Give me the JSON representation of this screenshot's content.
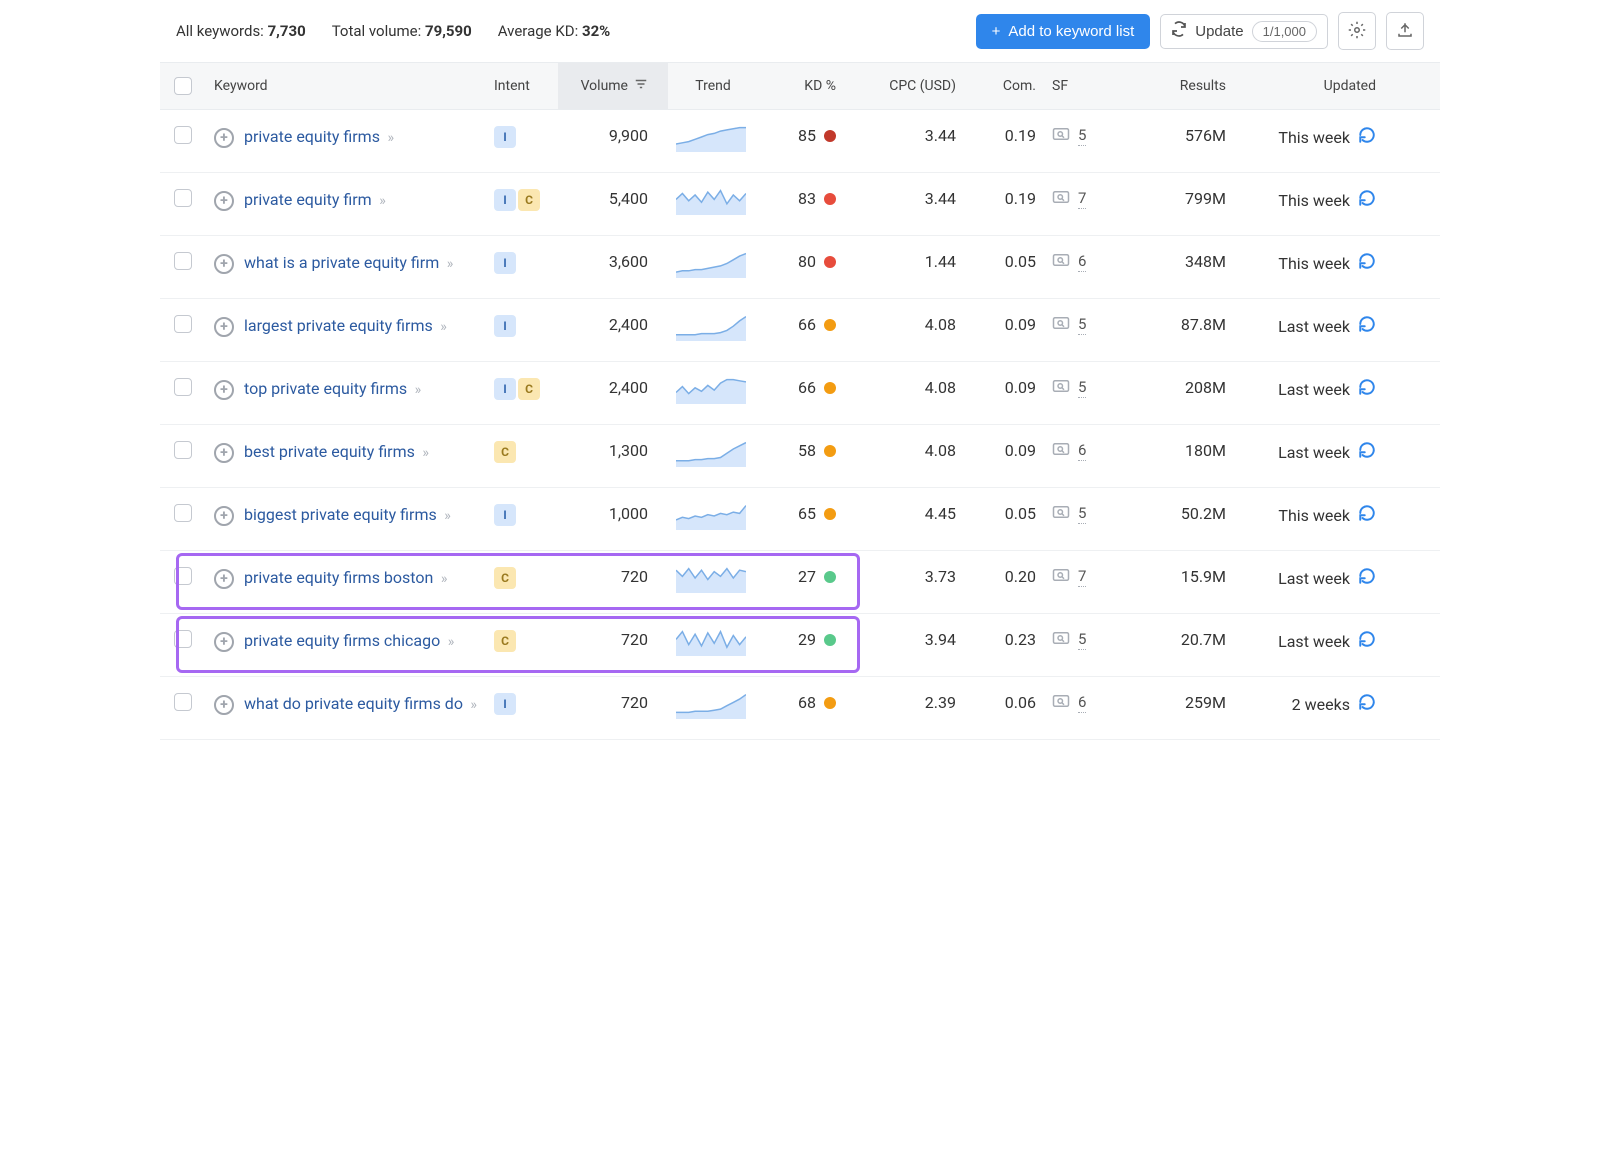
{
  "stats": {
    "all_keywords_label": "All keywords:",
    "all_keywords_value": "7,730",
    "total_volume_label": "Total volume:",
    "total_volume_value": "79,590",
    "average_kd_label": "Average KD:",
    "average_kd_value": "32%"
  },
  "actions": {
    "add_to_list": "Add to keyword list",
    "update": "Update",
    "update_count": "1/1,000"
  },
  "columns": {
    "keyword": "Keyword",
    "intent": "Intent",
    "volume": "Volume",
    "trend": "Trend",
    "kd": "KD %",
    "cpc": "CPC (USD)",
    "com": "Com.",
    "sf": "SF",
    "results": "Results",
    "updated": "Updated"
  },
  "colors": {
    "kd_red_dark": "#c1392b",
    "kd_red": "#e74c3c",
    "kd_orange": "#f39c12",
    "kd_green": "#59c98b",
    "trend_fill": "#d6e6fb",
    "trend_stroke": "#7baee6",
    "highlight_border": "#a668f2"
  },
  "rows": [
    {
      "keyword": "private equity firms",
      "intents": [
        "I"
      ],
      "volume": "9,900",
      "trend": [
        6,
        7,
        8,
        10,
        12,
        14,
        15,
        17,
        18,
        19,
        20,
        20
      ],
      "kd": "85",
      "kd_color": "#c1392b",
      "cpc": "3.44",
      "com": "0.19",
      "sf": "5",
      "results": "576M",
      "updated": "This week"
    },
    {
      "keyword": "private equity firm",
      "intents": [
        "I",
        "C"
      ],
      "volume": "5,400",
      "trend": [
        10,
        14,
        9,
        13,
        8,
        15,
        10,
        16,
        7,
        13,
        9,
        14
      ],
      "kd": "83",
      "kd_color": "#e74c3c",
      "cpc": "3.44",
      "com": "0.19",
      "sf": "7",
      "results": "799M",
      "updated": "This week"
    },
    {
      "keyword": "what is a private equity firm",
      "intents": [
        "I"
      ],
      "volume": "3,600",
      "trend": [
        4,
        5,
        5,
        6,
        6,
        7,
        8,
        9,
        11,
        14,
        17,
        19
      ],
      "kd": "80",
      "kd_color": "#e74c3c",
      "cpc": "1.44",
      "com": "0.05",
      "sf": "6",
      "results": "348M",
      "updated": "This week"
    },
    {
      "keyword": "largest private equity firms",
      "intents": [
        "I"
      ],
      "volume": "2,400",
      "trend": [
        5,
        5,
        5,
        5,
        6,
        6,
        6,
        7,
        9,
        13,
        18,
        22
      ],
      "kd": "66",
      "kd_color": "#f39c12",
      "cpc": "4.08",
      "com": "0.09",
      "sf": "5",
      "results": "87.8M",
      "updated": "Last week"
    },
    {
      "keyword": "top private equity firms",
      "intents": [
        "I",
        "C"
      ],
      "volume": "2,400",
      "trend": [
        9,
        14,
        8,
        13,
        10,
        15,
        11,
        17,
        20,
        20,
        19,
        18
      ],
      "kd": "66",
      "kd_color": "#f39c12",
      "cpc": "4.08",
      "com": "0.09",
      "sf": "5",
      "results": "208M",
      "updated": "Last week"
    },
    {
      "keyword": "best private equity firms",
      "intents": [
        "C"
      ],
      "volume": "1,300",
      "trend": [
        5,
        5,
        5,
        6,
        6,
        7,
        7,
        8,
        12,
        16,
        19,
        22
      ],
      "kd": "58",
      "kd_color": "#f39c12",
      "cpc": "4.08",
      "com": "0.09",
      "sf": "6",
      "results": "180M",
      "updated": "Last week"
    },
    {
      "keyword": "biggest private equity firms",
      "intents": [
        "I"
      ],
      "volume": "1,000",
      "trend": [
        7,
        9,
        8,
        10,
        9,
        11,
        10,
        12,
        11,
        13,
        12,
        18
      ],
      "kd": "65",
      "kd_color": "#f39c12",
      "cpc": "4.45",
      "com": "0.05",
      "sf": "5",
      "results": "50.2M",
      "updated": "This week"
    },
    {
      "keyword": "private equity firms boston",
      "intents": [
        "C"
      ],
      "volume": "720",
      "trend": [
        14,
        10,
        15,
        9,
        14,
        8,
        13,
        10,
        15,
        9,
        14,
        13
      ],
      "kd": "27",
      "kd_color": "#59c98b",
      "cpc": "3.73",
      "com": "0.20",
      "sf": "7",
      "results": "15.9M",
      "updated": "Last week",
      "highlight": true
    },
    {
      "keyword": "private equity firms chicago",
      "intents": [
        "C"
      ],
      "volume": "720",
      "trend": [
        12,
        18,
        8,
        16,
        7,
        17,
        9,
        18,
        6,
        15,
        8,
        14
      ],
      "kd": "29",
      "kd_color": "#59c98b",
      "cpc": "3.94",
      "com": "0.23",
      "sf": "5",
      "results": "20.7M",
      "updated": "Last week",
      "highlight": true
    },
    {
      "keyword": "what do private equity firms do",
      "intents": [
        "I"
      ],
      "volume": "720",
      "trend": [
        5,
        5,
        5,
        6,
        6,
        6,
        7,
        8,
        11,
        14,
        17,
        21
      ],
      "kd": "68",
      "kd_color": "#f39c12",
      "cpc": "2.39",
      "com": "0.06",
      "sf": "6",
      "results": "259M",
      "updated": "2 weeks"
    }
  ]
}
